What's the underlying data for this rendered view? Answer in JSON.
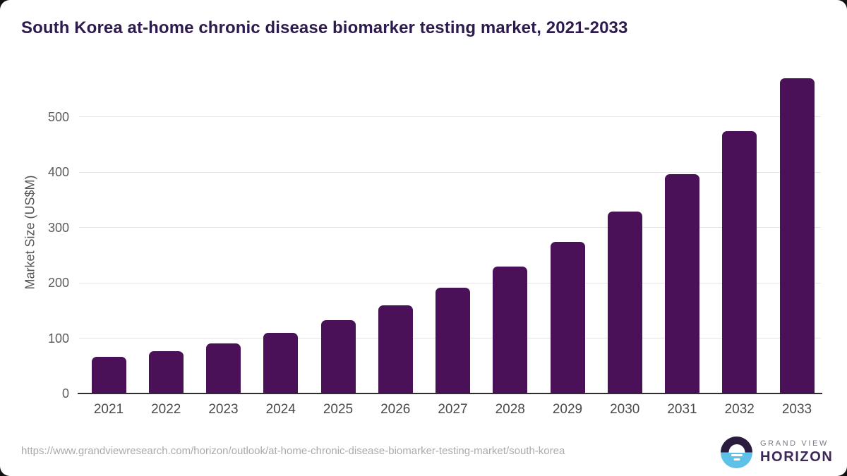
{
  "title": "South Korea at-home chronic disease biomarker testing market, 2021-2033",
  "chart_data": {
    "type": "bar",
    "categories": [
      "2021",
      "2022",
      "2023",
      "2024",
      "2025",
      "2026",
      "2027",
      "2028",
      "2029",
      "2030",
      "2031",
      "2032",
      "2033"
    ],
    "values": [
      66,
      77,
      91,
      110,
      132,
      159,
      191,
      230,
      274,
      329,
      396,
      474,
      570
    ],
    "title": "South Korea at-home chronic disease biomarker testing market, 2021-2033",
    "xlabel": "",
    "ylabel": "Market Size (US$M)",
    "ylim": [
      0,
      584
    ],
    "yticks": [
      0,
      100,
      200,
      300,
      400,
      500
    ],
    "grid": "horizontal",
    "legend": "none",
    "bar_color": "#4a1159"
  },
  "colors": {
    "title_text": "#2d1b4e",
    "bar": "#4a1159",
    "gridline": "#e4e4e4",
    "axis_line": "#2e2e2e",
    "tick_text": "#5c5c5c",
    "url_text": "#aaaaaa",
    "logo_navy": "#2b1c3f",
    "logo_blue": "#5ec1e8",
    "logo_horizon_text": "#3d2857",
    "logo_grandview_text": "#7d7886"
  },
  "footer": {
    "source_url": "https://www.grandviewresearch.com/horizon/outlook/at-home-chronic-disease-biomarker-testing-market/south-korea",
    "logo": {
      "line1": "GRAND VIEW",
      "line2": "HORIZON"
    }
  }
}
